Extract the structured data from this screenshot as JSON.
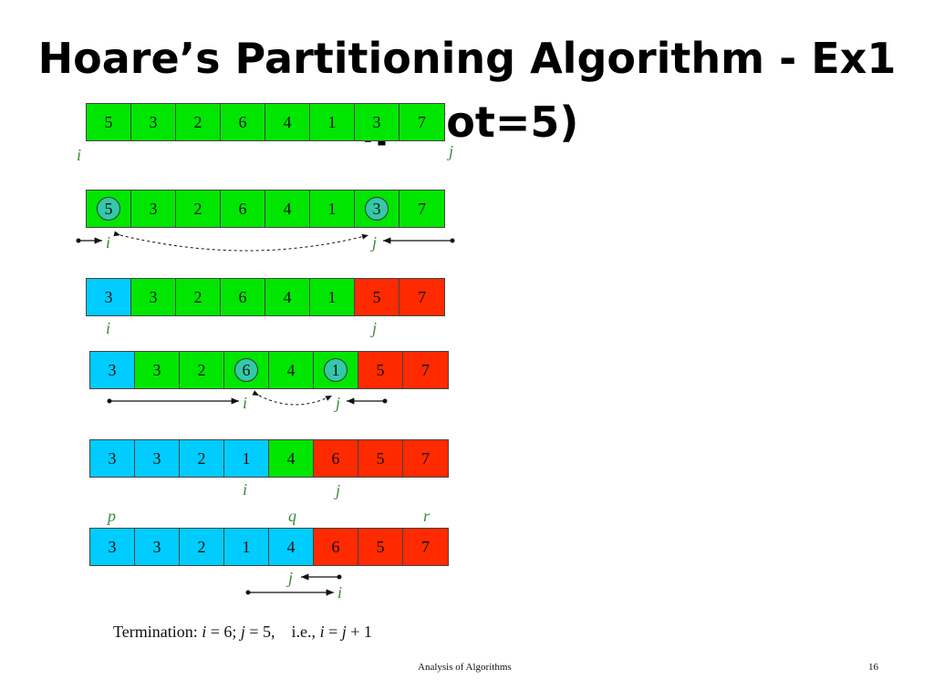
{
  "title": {
    "line1": "Hoare’s Partitioning Algorithm - Ex1",
    "line2": "(pivot=5)"
  },
  "arrays": [
    {
      "values": [
        "5",
        "3",
        "2",
        "6",
        "4",
        "1",
        "3",
        "7"
      ],
      "colors": [
        "g",
        "g",
        "g",
        "g",
        "g",
        "g",
        "g",
        "g"
      ],
      "circled": []
    },
    {
      "values": [
        "5",
        "3",
        "2",
        "6",
        "4",
        "1",
        "3",
        "7"
      ],
      "colors": [
        "g",
        "g",
        "g",
        "g",
        "g",
        "g",
        "g",
        "g"
      ],
      "circled": [
        0,
        6
      ]
    },
    {
      "values": [
        "3",
        "3",
        "2",
        "6",
        "4",
        "1",
        "5",
        "7"
      ],
      "colors": [
        "c",
        "g",
        "g",
        "g",
        "g",
        "g",
        "r",
        "r"
      ],
      "circled": []
    },
    {
      "values": [
        "3",
        "3",
        "2",
        "6",
        "4",
        "1",
        "5",
        "7"
      ],
      "colors": [
        "c",
        "g",
        "g",
        "g",
        "g",
        "g",
        "r",
        "r"
      ],
      "circled": [
        3,
        5
      ]
    },
    {
      "values": [
        "3",
        "3",
        "2",
        "1",
        "4",
        "6",
        "5",
        "7"
      ],
      "colors": [
        "c",
        "c",
        "c",
        "c",
        "g",
        "r",
        "r",
        "r"
      ],
      "circled": []
    },
    {
      "values": [
        "3",
        "3",
        "2",
        "1",
        "4",
        "6",
        "5",
        "7"
      ],
      "colors": [
        "c",
        "c",
        "c",
        "c",
        "c",
        "r",
        "r",
        "r"
      ],
      "circled": []
    }
  ],
  "labels": {
    "i": "i",
    "j": "j",
    "p": "p",
    "q": "q",
    "r": "r"
  },
  "termination": {
    "prefix": "Termination: ",
    "i_var": "i",
    "i_eq": " = 6; ",
    "j_var": "j",
    "j_eq": " = 5,    i.e., ",
    "i_var2": "i",
    "mid": " = ",
    "j_var2": "j",
    "suffix": " + 1"
  },
  "footer": {
    "course": "Analysis of Algorithms",
    "page": "16"
  },
  "colors": {
    "green": "#00e600",
    "cyan": "#00ccff",
    "red": "#ff2a00",
    "label": "#3a8a3a"
  }
}
